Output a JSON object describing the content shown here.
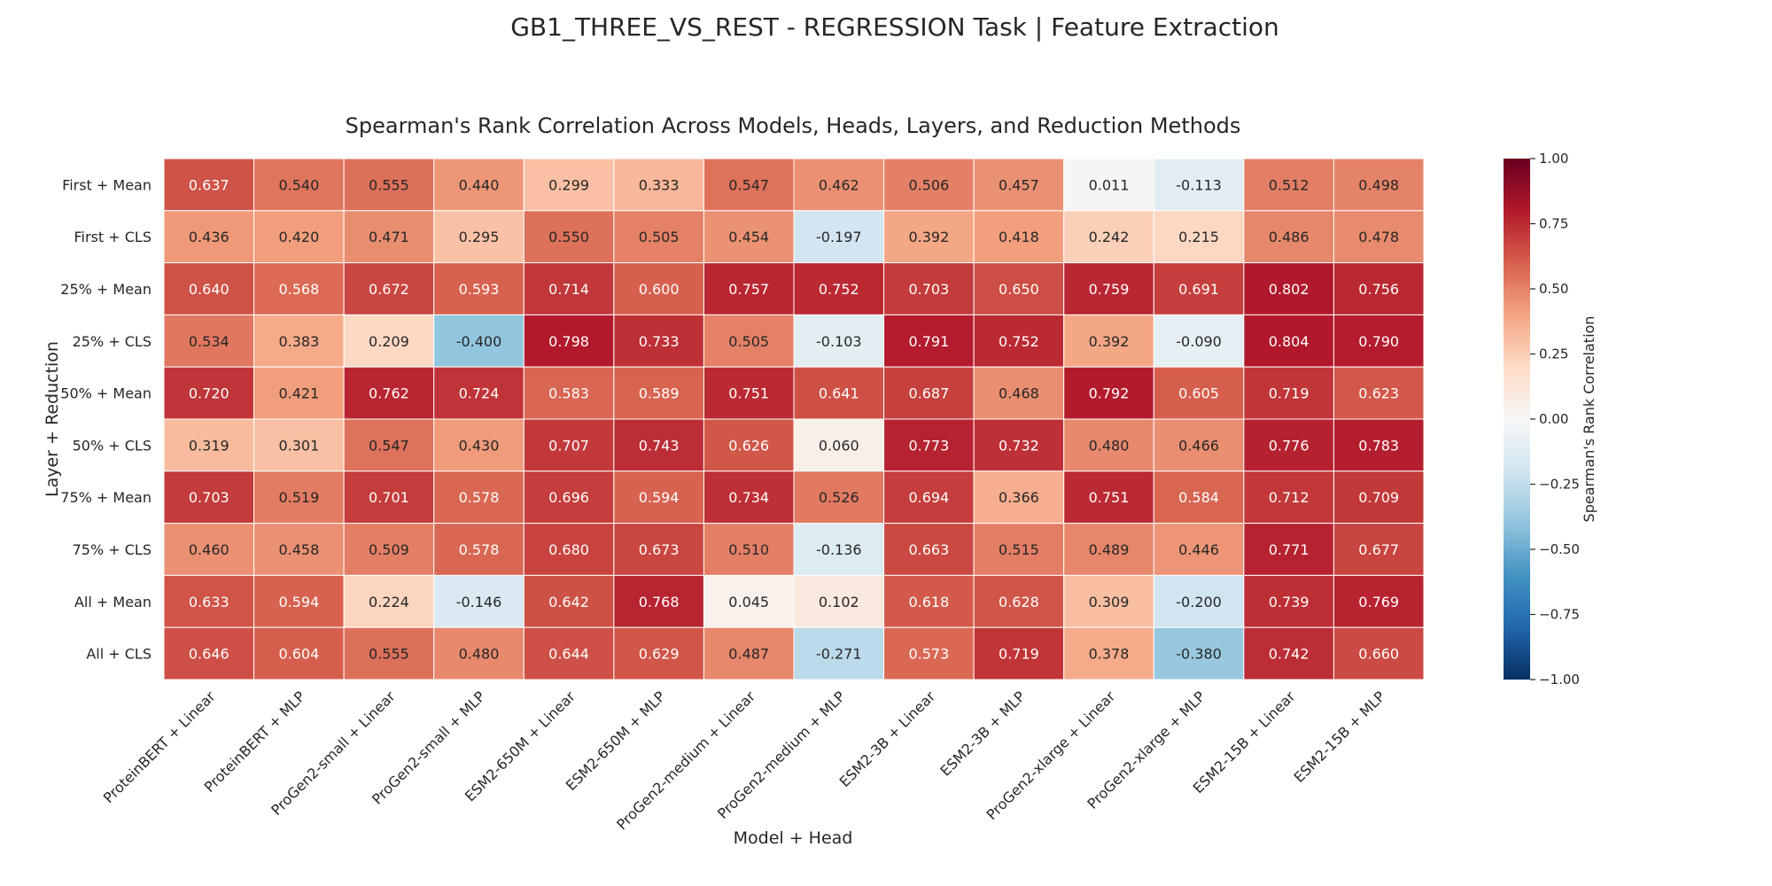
{
  "chart_data": {
    "type": "heatmap",
    "suptitle": "GB1_THREE_VS_REST - REGRESSION Task | Feature Extraction",
    "title": "Spearman's Rank Correlation Across Models, Heads, Layers, and Reduction Methods",
    "xlabel": "Model + Head",
    "ylabel": "Layer + Reduction",
    "colorbar_label": "Spearman's Rank Correlation",
    "colormap": "RdBu_r",
    "vmin": -1.0,
    "vmax": 1.0,
    "colorbar_ticks": [
      "1.00",
      "0.75",
      "0.50",
      "0.25",
      "0.00",
      "−0.25",
      "−0.50",
      "−0.75",
      "−1.00"
    ],
    "colorbar_tick_values": [
      1.0,
      0.75,
      0.5,
      0.25,
      0.0,
      -0.25,
      -0.5,
      -0.75,
      -1.0
    ],
    "columns": [
      "ProteinBERT + Linear",
      "ProteinBERT + MLP",
      "ProGen2-small + Linear",
      "ProGen2-small + MLP",
      "ESM2-650M + Linear",
      "ESM2-650M + MLP",
      "ProGen2-medium + Linear",
      "ProGen2-medium + MLP",
      "ESM2-3B + Linear",
      "ESM2-3B + MLP",
      "ProGen2-xlarge + Linear",
      "ProGen2-xlarge + MLP",
      "ESM2-15B + Linear",
      "ESM2-15B + MLP"
    ],
    "rows": [
      "First + Mean",
      "First + CLS",
      "25% + Mean",
      "25% + CLS",
      "50% + Mean",
      "50% + CLS",
      "75% + Mean",
      "75% + CLS",
      "All + Mean",
      "All + CLS"
    ],
    "values": [
      [
        0.637,
        0.54,
        0.555,
        0.44,
        0.299,
        0.333,
        0.547,
        0.462,
        0.506,
        0.457,
        0.011,
        -0.113,
        0.512,
        0.498
      ],
      [
        0.436,
        0.42,
        0.471,
        0.295,
        0.55,
        0.505,
        0.454,
        -0.197,
        0.392,
        0.418,
        0.242,
        0.215,
        0.486,
        0.478
      ],
      [
        0.64,
        0.568,
        0.672,
        0.593,
        0.714,
        0.6,
        0.757,
        0.752,
        0.703,
        0.65,
        0.759,
        0.691,
        0.802,
        0.756
      ],
      [
        0.534,
        0.383,
        0.209,
        -0.4,
        0.798,
        0.733,
        0.505,
        -0.103,
        0.791,
        0.752,
        0.392,
        -0.09,
        0.804,
        0.79
      ],
      [
        0.72,
        0.421,
        0.762,
        0.724,
        0.583,
        0.589,
        0.751,
        0.641,
        0.687,
        0.468,
        0.792,
        0.605,
        0.719,
        0.623
      ],
      [
        0.319,
        0.301,
        0.547,
        0.43,
        0.707,
        0.743,
        0.626,
        0.06,
        0.773,
        0.732,
        0.48,
        0.466,
        0.776,
        0.783
      ],
      [
        0.703,
        0.519,
        0.701,
        0.578,
        0.696,
        0.594,
        0.734,
        0.526,
        0.694,
        0.366,
        0.751,
        0.584,
        0.712,
        0.709
      ],
      [
        0.46,
        0.458,
        0.509,
        0.578,
        0.68,
        0.673,
        0.51,
        -0.136,
        0.663,
        0.515,
        0.489,
        0.446,
        0.771,
        0.677
      ],
      [
        0.633,
        0.594,
        0.224,
        -0.146,
        0.642,
        0.768,
        0.045,
        0.102,
        0.618,
        0.628,
        0.309,
        -0.2,
        0.739,
        0.769
      ],
      [
        0.646,
        0.604,
        0.555,
        0.48,
        0.644,
        0.629,
        0.487,
        -0.271,
        0.573,
        0.719,
        0.378,
        -0.38,
        0.742,
        0.66
      ]
    ]
  }
}
